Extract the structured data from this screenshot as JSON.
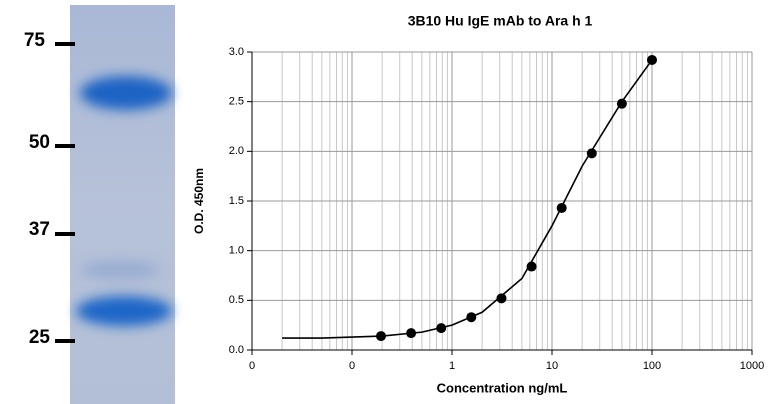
{
  "gel": {
    "markers": [
      "75",
      "50",
      "37",
      "25"
    ]
  },
  "chart_data": {
    "type": "scatter",
    "title": "3B10 Hu IgE mAb to Ara h 1",
    "x_label": "Concentration ng/mL",
    "y_label": "O.D. 450nm",
    "xscale": "log",
    "grid": true,
    "color": "#000000",
    "xlim": [
      0.01,
      1000
    ],
    "xticks": [
      {
        "value": 0.01,
        "label": "0"
      },
      {
        "value": 0.1,
        "label": "0"
      },
      1,
      10,
      100,
      1000
    ],
    "x_minor_ticks": [
      0.02,
      0.03,
      0.04,
      0.05,
      0.06,
      0.07,
      0.08,
      0.09,
      0.2,
      0.3,
      0.4,
      0.5,
      0.6,
      0.7,
      0.8,
      0.9,
      2,
      3,
      4,
      5,
      6,
      7,
      8,
      9,
      20,
      30,
      40,
      50,
      60,
      70,
      80,
      90,
      200,
      300,
      400,
      500,
      600,
      700,
      800,
      900
    ],
    "ylim": [
      0,
      3
    ],
    "yticks": [
      {
        "value": 0,
        "label": "0.0"
      },
      0.5,
      {
        "value": 1,
        "label": "1.0"
      },
      1.5,
      {
        "value": 2,
        "label": "2.0"
      },
      2.5,
      {
        "value": 3,
        "label": "3.0"
      }
    ],
    "points": {
      "x": [
        0.195,
        0.39,
        0.78,
        1.56,
        3.125,
        6.25,
        12.5,
        25,
        50,
        100
      ],
      "values": [
        0.14,
        0.17,
        0.22,
        0.33,
        0.52,
        0.84,
        1.43,
        1.98,
        2.48,
        2.92
      ]
    },
    "curve": {
      "x": [
        0.02,
        0.05,
        0.1,
        0.2,
        0.5,
        1,
        2,
        5,
        10,
        20,
        50,
        100
      ],
      "values": [
        0.12,
        0.12,
        0.13,
        0.14,
        0.18,
        0.25,
        0.38,
        0.72,
        1.25,
        1.85,
        2.5,
        2.92
      ]
    }
  }
}
